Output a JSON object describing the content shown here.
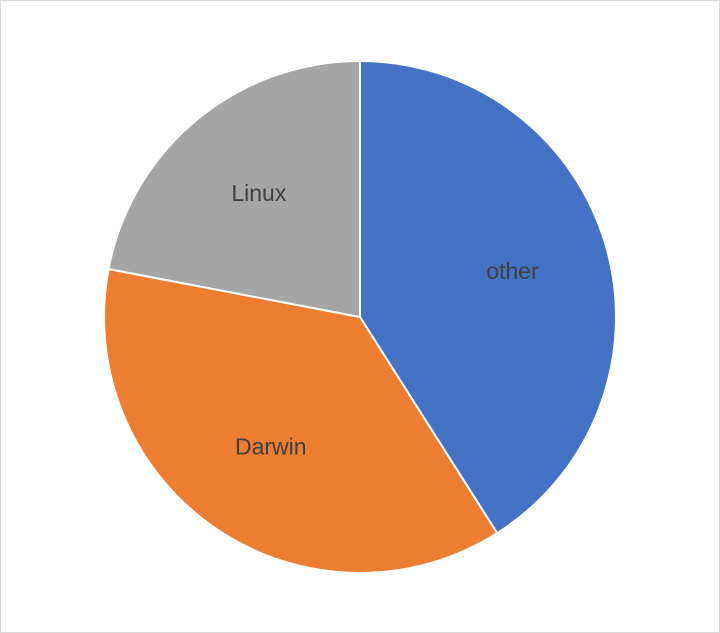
{
  "chart_data": {
    "type": "pie",
    "title": "",
    "legend": "none",
    "start_angle_deg": 0,
    "direction": "clockwise",
    "slices": [
      {
        "label": "other",
        "value": 41,
        "color": "#4472c4"
      },
      {
        "label": "Darwin",
        "value": 37,
        "color": "#ed7d31"
      },
      {
        "label": "Linux",
        "value": 22,
        "color": "#a5a5a5"
      }
    ]
  }
}
